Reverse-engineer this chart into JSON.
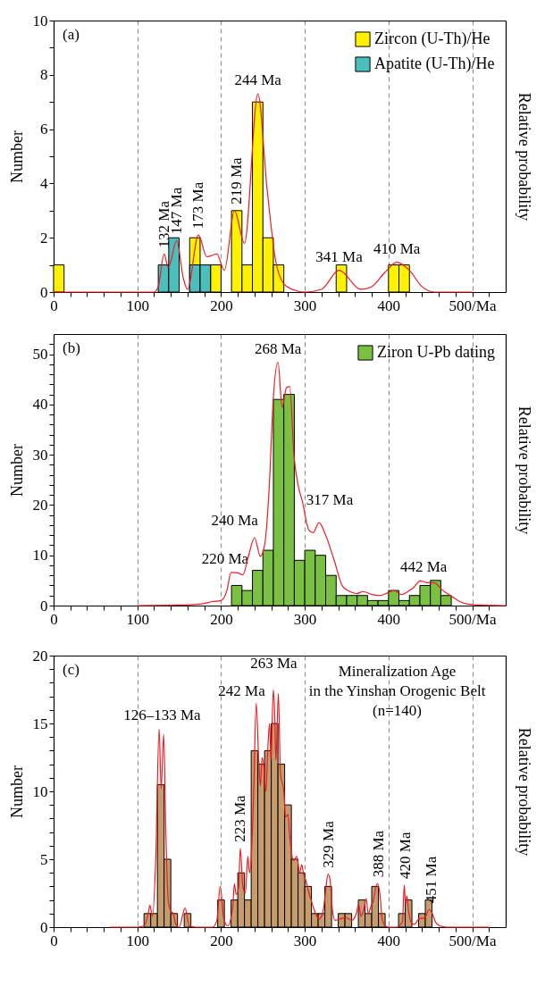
{
  "chart_data": [
    {
      "type": "histogram",
      "xlim": [
        0,
        540
      ],
      "ylim": [
        0,
        10
      ],
      "ylabel": "Number",
      "y2label": "Relative probability",
      "grid": "x",
      "legend": "top right",
      "xticks": [
        0,
        {
          "value": 20,
          "label": null
        },
        {
          "value": 40,
          "label": null
        },
        {
          "value": 60,
          "label": null
        },
        {
          "value": 80,
          "label": null
        },
        100,
        {
          "value": 120,
          "label": null
        },
        {
          "value": 140,
          "label": null
        },
        {
          "value": 160,
          "label": null
        },
        {
          "value": 180,
          "label": null
        },
        200,
        {
          "value": 220,
          "label": null
        },
        {
          "value": 240,
          "label": null
        },
        {
          "value": 260,
          "label": null
        },
        {
          "value": 280,
          "label": null
        },
        300,
        {
          "value": 320,
          "label": null
        },
        {
          "value": 340,
          "label": null
        },
        {
          "value": 360,
          "label": null
        },
        {
          "value": 380,
          "label": null
        },
        400,
        {
          "value": 420,
          "label": null
        },
        {
          "value": 440,
          "label": null
        },
        {
          "value": 460,
          "label": null
        },
        {
          "value": 480,
          "label": null
        },
        {
          "value": 500,
          "label": "500/Ma"
        },
        {
          "value": 520,
          "label": null
        }
      ],
      "yticks": [
        0,
        {
          "value": 1,
          "label": null
        },
        2,
        {
          "value": 3,
          "label": null
        },
        4,
        {
          "value": 5,
          "label": null
        },
        6,
        {
          "value": 7,
          "label": null
        },
        8,
        {
          "value": 9,
          "label": null
        },
        10
      ],
      "bins": [
        0,
        12.5,
        25,
        37.5,
        50,
        62.5,
        75,
        87.5,
        100,
        112.5,
        125,
        137.5,
        150,
        162.5,
        175,
        187.5,
        200,
        212.5,
        225,
        237.5,
        250,
        262.5,
        275,
        287.5,
        300,
        312.5,
        325,
        337.5,
        350,
        362.5,
        375,
        387.5,
        400,
        412.5,
        425
      ],
      "series": [
        {
          "name": "Zircon (U-Th)/He",
          "color": "#fff200",
          "values": [
            1,
            0,
            0,
            0,
            0,
            0,
            0,
            0,
            0,
            0,
            0,
            0,
            0,
            2,
            0,
            1,
            0,
            3,
            1,
            7,
            2,
            1,
            0,
            0,
            0,
            0,
            0,
            1,
            0,
            0,
            0,
            0,
            1,
            1
          ]
        },
        {
          "name": "Apatite (U-Th)/He",
          "color": "#4cbfbd",
          "values": [
            0,
            0,
            0,
            0,
            0,
            0,
            0,
            0,
            0,
            0,
            1,
            2,
            0,
            1,
            1,
            0,
            0,
            0,
            0,
            0,
            0,
            0,
            0,
            0,
            0,
            0,
            0,
            0,
            0,
            0,
            0,
            0,
            0,
            0
          ]
        },
        {
          "type": "line",
          "color": "#ed1c24",
          "x": [
            0,
            100,
            120,
            125,
            132,
            137,
            147,
            155,
            160,
            173,
            183,
            195,
            204,
            216,
            228,
            244,
            255,
            265,
            275,
            285,
            300,
            320,
            341,
            367,
            380,
            395,
            410,
            425,
            440,
            455,
            470,
            500
          ],
          "values": [
            0,
            0,
            0,
            0.2,
            1.4,
            0.9,
            1.9,
            0.5,
            0.1,
            2.1,
            1.3,
            1.4,
            0.8,
            3.0,
            1.8,
            7.3,
            3.8,
            1.2,
            0.3,
            0.1,
            0,
            0.1,
            0.8,
            0.1,
            0.2,
            0.7,
            1.1,
            0.8,
            0.2,
            0,
            0,
            0
          ]
        }
      ],
      "annotations": [
        "(a)",
        {
          "text": "132 Ma",
          "x": 132,
          "y": 1.4
        },
        {
          "text": "147 Ma",
          "x": 147,
          "y": 1.9
        },
        {
          "text": "173 Ma",
          "x": 173,
          "y": 2.1
        },
        {
          "text": "219 Ma",
          "x": 219,
          "y": 3
        },
        {
          "text": "244 Ma",
          "x": 244,
          "y": 7.3
        },
        {
          "text": "341 Ma",
          "x": 341,
          "y": 0.8
        },
        {
          "text": "410 Ma",
          "x": 410,
          "y": 1.1
        }
      ]
    },
    {
      "type": "histogram",
      "xlim": [
        0,
        540
      ],
      "ylim": [
        0,
        54
      ],
      "ylabel": "Number",
      "y2label": "Relative probability",
      "grid": "x",
      "legend": "top right",
      "xticks": [
        0,
        {
          "value": 20,
          "label": null
        },
        {
          "value": 40,
          "label": null
        },
        {
          "value": 60,
          "label": null
        },
        {
          "value": 80,
          "label": null
        },
        100,
        {
          "value": 120,
          "label": null
        },
        {
          "value": 140,
          "label": null
        },
        {
          "value": 160,
          "label": null
        },
        {
          "value": 180,
          "label": null
        },
        200,
        {
          "value": 220,
          "label": null
        },
        {
          "value": 240,
          "label": null
        },
        {
          "value": 260,
          "label": null
        },
        {
          "value": 280,
          "label": null
        },
        300,
        {
          "value": 320,
          "label": null
        },
        {
          "value": 340,
          "label": null
        },
        {
          "value": 360,
          "label": null
        },
        {
          "value": 380,
          "label": null
        },
        400,
        {
          "value": 420,
          "label": null
        },
        {
          "value": 440,
          "label": null
        },
        {
          "value": 460,
          "label": null
        },
        {
          "value": 480,
          "label": null
        },
        {
          "value": 500,
          "label": "500/Ma"
        },
        {
          "value": 520,
          "label": null
        }
      ],
      "yticks": [
        0,
        {
          "value": 2,
          "label": null
        },
        {
          "value": 4,
          "label": null
        },
        {
          "value": 6,
          "label": null
        },
        {
          "value": 8,
          "label": null
        },
        10,
        {
          "value": 12,
          "label": null
        },
        {
          "value": 14,
          "label": null
        },
        {
          "value": 16,
          "label": null
        },
        {
          "value": 18,
          "label": null
        },
        20,
        {
          "value": 22,
          "label": null
        },
        {
          "value": 24,
          "label": null
        },
        {
          "value": 26,
          "label": null
        },
        {
          "value": 28,
          "label": null
        },
        30,
        {
          "value": 32,
          "label": null
        },
        {
          "value": 34,
          "label": null
        },
        {
          "value": 36,
          "label": null
        },
        {
          "value": 38,
          "label": null
        },
        40,
        {
          "value": 42,
          "label": null
        },
        {
          "value": 44,
          "label": null
        },
        {
          "value": 46,
          "label": null
        },
        {
          "value": 48,
          "label": null
        },
        50,
        {
          "value": 52,
          "label": null
        }
      ],
      "bins": [
        212.5,
        225,
        237.5,
        250,
        262.5,
        275,
        287.5,
        300,
        312.5,
        325,
        337.5,
        350,
        362.5,
        375,
        387.5,
        400,
        412.5,
        425,
        437.5,
        450,
        462.5,
        475
      ],
      "series": [
        {
          "name": "Ziron U-Pb dating",
          "color": "#7ac143",
          "values": [
            4,
            3,
            7,
            11,
            41,
            42,
            9,
            11,
            10,
            6,
            2,
            2,
            2,
            1,
            1,
            3,
            1,
            2,
            4,
            5,
            2
          ]
        },
        {
          "type": "line",
          "color": "#ed1c24",
          "x": [
            100,
            150,
            175,
            190,
            200,
            207,
            212,
            220,
            226,
            233,
            240,
            247,
            252,
            258,
            262,
            268,
            273,
            278,
            282,
            287,
            292,
            297,
            305,
            310,
            317,
            325,
            335,
            345,
            355,
            362,
            370,
            380,
            390,
            400,
            407,
            415,
            425,
            430,
            438,
            445,
            455,
            465,
            475,
            485,
            495,
            510,
            540
          ],
          "values": [
            0,
            0.1,
            0.3,
            0.8,
            1,
            3,
            6.6,
            6.5,
            6.1,
            10,
            13.5,
            9.8,
            12,
            25,
            40,
            48.4,
            39.4,
            43.3,
            43.6,
            30,
            24,
            20.8,
            15,
            14.5,
            16.5,
            14,
            9.1,
            3.9,
            2.7,
            2.4,
            2.8,
            2.2,
            2,
            2.6,
            3,
            2.2,
            3,
            3.6,
            4.9,
            4.6,
            4.5,
            3,
            1.9,
            0.8,
            0.3,
            0.1,
            0
          ]
        }
      ],
      "annotations": [
        "(b)",
        {
          "text": "220 Ma",
          "x": 220,
          "y": 6.6
        },
        {
          "text": "240 Ma",
          "x": 240,
          "y": 13.5
        },
        {
          "text": "268 Ma",
          "x": 268,
          "y": 48.4
        },
        {
          "text": "317 Ma",
          "x": 317,
          "y": 16.5
        },
        {
          "text": "442 Ma",
          "x": 442,
          "y": 4.9
        }
      ]
    },
    {
      "type": "histogram",
      "xlim": [
        0,
        540
      ],
      "ylim": [
        0,
        20
      ],
      "ylabel": "Number",
      "y2label": "Relative probability",
      "grid": "x",
      "xticks": [
        0,
        {
          "value": 20,
          "label": null
        },
        {
          "value": 40,
          "label": null
        },
        {
          "value": 60,
          "label": null
        },
        {
          "value": 80,
          "label": null
        },
        100,
        {
          "value": 120,
          "label": null
        },
        {
          "value": 140,
          "label": null
        },
        {
          "value": 160,
          "label": null
        },
        {
          "value": 180,
          "label": null
        },
        200,
        {
          "value": 220,
          "label": null
        },
        {
          "value": 240,
          "label": null
        },
        {
          "value": 260,
          "label": null
        },
        {
          "value": 280,
          "label": null
        },
        300,
        {
          "value": 320,
          "label": null
        },
        {
          "value": 340,
          "label": null
        },
        {
          "value": 360,
          "label": null
        },
        {
          "value": 380,
          "label": null
        },
        400,
        {
          "value": 420,
          "label": null
        },
        {
          "value": 440,
          "label": null
        },
        {
          "value": 460,
          "label": null
        },
        {
          "value": 480,
          "label": null
        },
        {
          "value": 500,
          "label": "500/Ma"
        },
        {
          "value": 520,
          "label": null
        }
      ],
      "yticks": [
        0,
        {
          "value": 1,
          "label": null
        },
        {
          "value": 2,
          "label": null
        },
        {
          "value": 3,
          "label": null
        },
        {
          "value": 4,
          "label": null
        },
        5,
        {
          "value": 6,
          "label": null
        },
        {
          "value": 7,
          "label": null
        },
        {
          "value": 8,
          "label": null
        },
        {
          "value": 9,
          "label": null
        },
        10,
        {
          "value": 11,
          "label": null
        },
        {
          "value": 12,
          "label": null
        },
        {
          "value": 13,
          "label": null
        },
        {
          "value": 14,
          "label": null
        },
        15,
        {
          "value": 16,
          "label": null
        },
        {
          "value": 17,
          "label": null
        },
        {
          "value": 18,
          "label": null
        },
        {
          "value": 19,
          "label": null
        },
        20
      ],
      "bins": [
        108,
        116,
        124,
        132,
        140,
        148,
        156,
        164,
        172,
        180,
        188,
        196,
        204,
        212,
        220,
        228,
        236,
        244,
        252,
        260,
        268,
        276,
        284,
        292,
        300,
        308,
        316,
        324,
        332,
        340,
        348,
        356,
        364,
        372,
        380,
        388,
        396,
        404,
        412,
        420,
        428,
        436,
        444,
        452
      ],
      "series": [
        {
          "color": "#c69c6d",
          "values": [
            1,
            1,
            10.5,
            5,
            1,
            0,
            1,
            0,
            0,
            0,
            0,
            2,
            0,
            2,
            4,
            2,
            13,
            12,
            13,
            15,
            12,
            9,
            5,
            4,
            3,
            1,
            1,
            3,
            0,
            1,
            1,
            0,
            2,
            1,
            3,
            1,
            0,
            0,
            1,
            2,
            0,
            1,
            2
          ]
        },
        {
          "type": "line",
          "color": "#ed1c24",
          "x": [
            68,
            100,
            108,
            113,
            115,
            118,
            122,
            126,
            128.5,
            131.5,
            134,
            137,
            140,
            143,
            146,
            150,
            157,
            162,
            170,
            190,
            195,
            199,
            203,
            208,
            214,
            216,
            218,
            221,
            223,
            226,
            229,
            232,
            234,
            236,
            239,
            242,
            245,
            247,
            249,
            251,
            253.5,
            256,
            258,
            259.5,
            262.5,
            264,
            265.5,
            268.5,
            271,
            275,
            277,
            280,
            281.5,
            284.3,
            286.8,
            290.4,
            294,
            296.4,
            298.6,
            301,
            304.6,
            308,
            311.7,
            317,
            321.4,
            325,
            327.8,
            330.2,
            333,
            336,
            342,
            349,
            356,
            361.6,
            364.4,
            367,
            370.5,
            373.3,
            375.8,
            379.4,
            381.9,
            384.7,
            387.2,
            390,
            392.5,
            396,
            400.7,
            409.6,
            416.7,
            418.9,
            420.3,
            422,
            423.8,
            427.4,
            431,
            436.3,
            443.4,
            448.8,
            452.3,
            455.9,
            461,
            470,
            520
          ],
          "values": [
            0,
            0,
            0.1,
            1.0,
            1.6,
            0.8,
            5,
            14.6,
            10.2,
            14.2,
            7.1,
            1.9,
            1.2,
            1.0,
            0.2,
            0,
            1.4,
            0.1,
            0,
            0,
            0.5,
            3.0,
            0.7,
            0.1,
            1.5,
            3.2,
            2.4,
            2.9,
            5.8,
            3.0,
            2.5,
            5.2,
            4.0,
            5,
            10,
            16.5,
            12.3,
            10.4,
            12.5,
            11.9,
            10,
            13.3,
            15,
            12.3,
            17.5,
            15.8,
            12.3,
            17.2,
            11.3,
            10,
            8.1,
            8.3,
            7.1,
            5.4,
            4.9,
            5.2,
            4.0,
            4.6,
            3.9,
            3.5,
            2.6,
            1.9,
            1.2,
            0.6,
            1.0,
            2.7,
            3.9,
            3.5,
            1.3,
            0.5,
            0.6,
            0.7,
            0.5,
            1.0,
            1.7,
            0.8,
            1.3,
            2.1,
            1.0,
            1.6,
            1.9,
            2.9,
            3.2,
            2.3,
            0.6,
            0.1,
            0,
            0,
            0.4,
            3.1,
            1.7,
            2.3,
            1.3,
            0.3,
            0.2,
            0.6,
            0.7,
            1.3,
            1.0,
            0.4,
            0.1,
            0,
            0
          ]
        }
      ],
      "annotations": [
        "(c)",
        "Mineralization Age\nin the Yinshan Orogenic Belt\n(n=140)",
        {
          "text": "126–133 Ma",
          "x": 129.5,
          "y": 14.6
        },
        {
          "text": "223 Ma",
          "x": 223,
          "y": 5.8
        },
        {
          "text": "242 Ma",
          "x": 242,
          "y": 16.5
        },
        {
          "text": "263 Ma",
          "x": 263,
          "y": 17.5
        },
        {
          "text": "329 Ma",
          "x": 329,
          "y": 3.9
        },
        {
          "text": "388 Ma",
          "x": 388,
          "y": 3.2
        },
        {
          "text": "420 Ma",
          "x": 420,
          "y": 3.1
        },
        {
          "text": "451 Ma",
          "x": 451,
          "y": 1.3
        }
      ]
    }
  ]
}
